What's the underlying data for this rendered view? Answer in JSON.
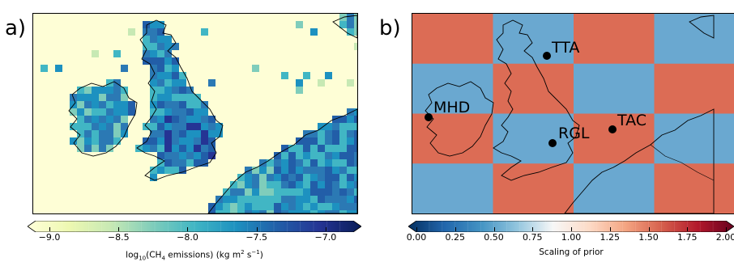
{
  "panels": [
    {
      "label": "a)",
      "colorbar": {
        "ticks": [
          "−9.0",
          "−8.5",
          "−8.0",
          "−7.5",
          "−7.0"
        ],
        "tick_values": [
          -9.0,
          -8.5,
          -8.0,
          -7.5,
          -7.0
        ],
        "range": [
          -9.1,
          -6.8
        ],
        "label_prefix": "log",
        "label_sub": "10",
        "label_mid": "(CH",
        "label_sub2": "4",
        "label_mid2": " emissions) (kg m",
        "label_sup": "2",
        "label_mid3": " s",
        "label_sup2": "−1",
        "label_end": ")",
        "colors": [
          "#ffffd9",
          "#edf8b1",
          "#c7e9b4",
          "#7fcdbb",
          "#41b6c4",
          "#1d91c0",
          "#225ea8",
          "#253494",
          "#081d58"
        ]
      }
    },
    {
      "label": "b)",
      "colorbar": {
        "ticks": [
          "0.00",
          "0.25",
          "0.50",
          "0.75",
          "1.00",
          "1.25",
          "1.50",
          "1.75",
          "2.00"
        ],
        "tick_values": [
          0.0,
          0.25,
          0.5,
          0.75,
          1.0,
          1.25,
          1.5,
          1.75,
          2.0
        ],
        "range": [
          0.0,
          2.0
        ],
        "label": "Scaling of prior",
        "colors": [
          "#053061",
          "#2166ac",
          "#4393c3",
          "#92c5de",
          "#f7f7f7",
          "#fddbc7",
          "#f4a582",
          "#d6604d",
          "#b2182b",
          "#67001f"
        ]
      },
      "checker": {
        "colors": {
          "orange": "#dc6c55",
          "blue": "#6aa8d0"
        },
        "rows": [
          [
            "orange",
            "blue",
            "orange",
            "blue"
          ],
          [
            "blue",
            "orange",
            "blue",
            "orange"
          ],
          [
            "orange",
            "blue",
            "orange",
            "blue"
          ],
          [
            "blue",
            "orange",
            "blue",
            "orange"
          ]
        ]
      },
      "stations": [
        {
          "name": "TTA"
        },
        {
          "name": "MHD"
        },
        {
          "name": "RGL"
        },
        {
          "name": "TAC"
        }
      ]
    }
  ],
  "map_a": {
    "background": "#fefed6",
    "cell_colors": [
      "#c7e9b4",
      "#7fcdbb",
      "#41b6c4",
      "#1d91c0",
      "#2b79b4",
      "#225ea8",
      "#253494"
    ]
  }
}
